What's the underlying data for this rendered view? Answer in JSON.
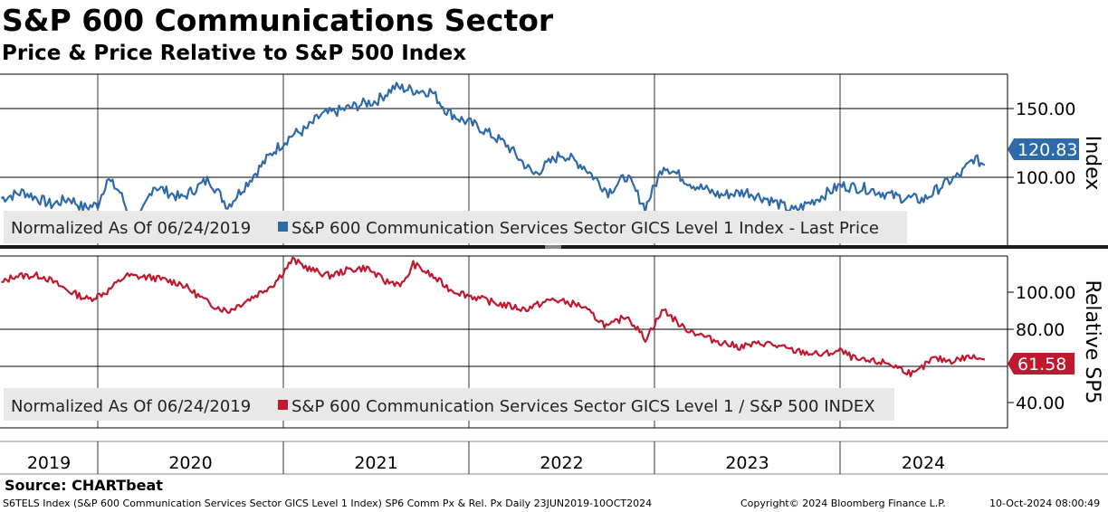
{
  "title": "S&P 600 Communications Sector",
  "subtitle": "Price & Price Relative to S&P 500 Index",
  "source": "Source: CHARTbeat",
  "footer": {
    "description": "S6TELS Index (S&P 600 Communication Services Sector GICS Level 1 Index) SP6 Comm Px & Rel. Px  Daily 23JUN2019-10OCT2024",
    "copyright": "Copyright© 2024 Bloomberg Finance L.P.",
    "timestamp": "10-Oct-2024 08:00:49"
  },
  "colors": {
    "index": "#2e6aa8",
    "relative": "#c0182e"
  },
  "chart_data": [
    {
      "type": "line",
      "x_unit": "year",
      "ylabel": "Index",
      "yticks": [
        "100.00",
        "150.00"
      ],
      "ylim": [
        70,
        178
      ],
      "last_value_label": "120.83",
      "legend": {
        "prefix": "Normalized As Of 06/24/2019",
        "series": "S&P 600 Communication Services Sector GICS Level 1 Index - Last Price"
      },
      "series": [
        {
          "name": "S&P 600 Communication Services Sector GICS Level 1 Index - Last Price",
          "x": [
            2019.48,
            2019.6,
            2019.75,
            2019.85,
            2019.92,
            2020.0,
            2020.05,
            2020.12,
            2020.2,
            2020.3,
            2020.45,
            2020.6,
            2020.7,
            2020.85,
            2020.95,
            2021.05,
            2021.12,
            2021.2,
            2021.3,
            2021.45,
            2021.5,
            2021.6,
            2021.7,
            2021.8,
            2021.88,
            2021.95,
            2022.05,
            2022.2,
            2022.35,
            2022.5,
            2022.62,
            2022.75,
            2022.85,
            2022.95,
            2023.05,
            2023.2,
            2023.35,
            2023.5,
            2023.62,
            2023.75,
            2023.88,
            2024.0,
            2024.15,
            2024.3,
            2024.45,
            2024.55,
            2024.65,
            2024.72,
            2024.78
          ],
          "values": [
            100,
            104,
            96,
            100,
            94,
            96,
            112,
            104,
            80,
            108,
            100,
            112,
            95,
            116,
            130,
            140,
            143,
            152,
            155,
            160,
            161,
            170,
            168,
            167,
            155,
            150,
            145,
            134,
            115,
            128,
            120,
            104,
            114,
            94,
            121,
            109,
            102,
            104,
            99,
            92,
            100,
            108,
            106,
            101,
            99,
            108,
            115,
            125,
            120.83
          ]
        }
      ]
    },
    {
      "type": "line",
      "x_unit": "year",
      "ylabel": "Relative SP5",
      "yticks": [
        "40.00",
        "80.00",
        "100.00"
      ],
      "ylim": [
        27,
        114
      ],
      "last_value_label": "61.58",
      "legend": {
        "prefix": "Normalized As Of 06/24/2019",
        "series": "S&P 600 Communication Services Sector GICS Level 1 / S&P 500 INDEX"
      },
      "series": [
        {
          "name": "S&P 600 Communication Services Sector GICS Level 1 / S&P 500 INDEX",
          "x": [
            2019.48,
            2019.55,
            2019.7,
            2019.85,
            2019.95,
            2020.05,
            2020.15,
            2020.3,
            2020.45,
            2020.6,
            2020.7,
            2020.85,
            2020.95,
            2021.05,
            2021.15,
            2021.25,
            2021.35,
            2021.45,
            2021.55,
            2021.65,
            2021.7,
            2021.8,
            2021.9,
            2022.0,
            2022.15,
            2022.3,
            2022.45,
            2022.6,
            2022.75,
            2022.85,
            2022.95,
            2023.05,
            2023.15,
            2023.3,
            2023.45,
            2023.6,
            2023.75,
            2023.9,
            2024.0,
            2024.1,
            2024.25,
            2024.4,
            2024.5,
            2024.6,
            2024.7,
            2024.78
          ],
          "values": [
            100,
            104,
            104,
            96,
            92,
            96,
            104,
            103,
            100,
            90,
            86,
            94,
            100,
            112,
            107,
            104,
            107,
            108,
            101,
            100,
            110,
            104,
            97,
            94,
            90,
            87,
            92,
            89,
            78,
            84,
            72,
            87,
            78,
            72,
            68,
            70,
            66,
            64,
            66,
            61,
            60,
            54,
            62,
            61,
            63,
            61.58
          ]
        }
      ]
    }
  ],
  "x_axis": {
    "labels": [
      "2019",
      "2020",
      "2021",
      "2022",
      "2023",
      "2024"
    ]
  }
}
